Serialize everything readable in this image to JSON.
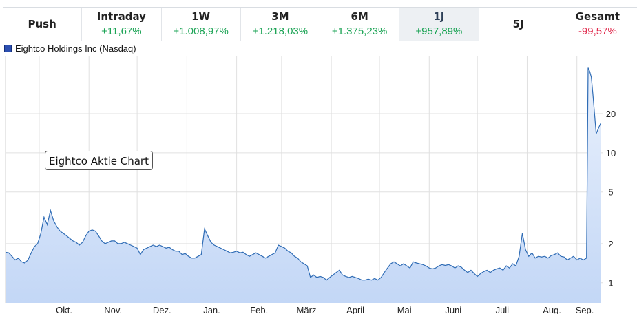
{
  "tabs": [
    {
      "label": "Push",
      "change": "",
      "selected": false
    },
    {
      "label": "Intraday",
      "change": "+11,67%",
      "selected": false
    },
    {
      "label": "1W",
      "change": "+1.008,97%",
      "selected": false
    },
    {
      "label": "3M",
      "change": "+1.218,03%",
      "selected": false
    },
    {
      "label": "6M",
      "change": "+1.375,23%",
      "selected": false
    },
    {
      "label": "1J",
      "change": "+957,89%",
      "selected": true
    },
    {
      "label": "5J",
      "change": "",
      "selected": false
    },
    {
      "label": "Gesamt",
      "change": "-99,57%",
      "selected": false
    }
  ],
  "colors": {
    "positive": "#1aa354",
    "negative": "#e0284b",
    "series_line": "#2f6cb5",
    "series_fill": "#c3d7f6",
    "legend_swatch": "#2b4eb0"
  },
  "chart_data": {
    "type": "area",
    "series_name": "Eightco Holdings Inc (Nasdaq)",
    "annotation": "Eightco Aktie Chart",
    "y_scale": "log",
    "y_ticks": [
      "1",
      "2",
      "5",
      "10",
      "20"
    ],
    "ylim": [
      0.7,
      55
    ],
    "x_ticks": [
      "Okt.",
      "Nov.",
      "Dez.",
      "Jan.",
      "Feb.",
      "März",
      "April",
      "Mai",
      "Juni",
      "Juli",
      "Aug.",
      "Sep."
    ],
    "xlim": [
      "2024-09-10",
      "2025-09-17"
    ],
    "grid": true,
    "y_axis_side": "right",
    "points": [
      [
        "2024-09-10",
        1.72
      ],
      [
        "2024-09-12",
        1.7
      ],
      [
        "2024-09-14",
        1.6
      ],
      [
        "2024-09-16",
        1.5
      ],
      [
        "2024-09-18",
        1.55
      ],
      [
        "2024-09-20",
        1.45
      ],
      [
        "2024-09-22",
        1.42
      ],
      [
        "2024-09-24",
        1.5
      ],
      [
        "2024-09-26",
        1.7
      ],
      [
        "2024-09-28",
        1.9
      ],
      [
        "2024-09-30",
        2.0
      ],
      [
        "2024-10-02",
        2.4
      ],
      [
        "2024-10-04",
        3.2
      ],
      [
        "2024-10-06",
        2.8
      ],
      [
        "2024-10-08",
        3.6
      ],
      [
        "2024-10-10",
        3.0
      ],
      [
        "2024-10-12",
        2.7
      ],
      [
        "2024-10-14",
        2.5
      ],
      [
        "2024-10-16",
        2.4
      ],
      [
        "2024-10-18",
        2.3
      ],
      [
        "2024-10-20",
        2.2
      ],
      [
        "2024-10-22",
        2.1
      ],
      [
        "2024-10-24",
        2.05
      ],
      [
        "2024-10-26",
        1.95
      ],
      [
        "2024-10-28",
        2.05
      ],
      [
        "2024-10-30",
        2.3
      ],
      [
        "2024-11-01",
        2.5
      ],
      [
        "2024-11-03",
        2.55
      ],
      [
        "2024-11-05",
        2.5
      ],
      [
        "2024-11-07",
        2.3
      ],
      [
        "2024-11-09",
        2.1
      ],
      [
        "2024-11-11",
        2.0
      ],
      [
        "2024-11-13",
        2.05
      ],
      [
        "2024-11-15",
        2.1
      ],
      [
        "2024-11-17",
        2.1
      ],
      [
        "2024-11-19",
        2.0
      ],
      [
        "2024-11-21",
        2.0
      ],
      [
        "2024-11-23",
        2.05
      ],
      [
        "2024-11-25",
        2.0
      ],
      [
        "2024-11-27",
        1.95
      ],
      [
        "2024-11-29",
        1.9
      ],
      [
        "2024-12-01",
        1.85
      ],
      [
        "2024-12-03",
        1.65
      ],
      [
        "2024-12-05",
        1.8
      ],
      [
        "2024-12-07",
        1.85
      ],
      [
        "2024-12-09",
        1.9
      ],
      [
        "2024-12-11",
        1.95
      ],
      [
        "2024-12-13",
        1.9
      ],
      [
        "2024-12-15",
        1.95
      ],
      [
        "2024-12-17",
        1.9
      ],
      [
        "2024-12-19",
        1.85
      ],
      [
        "2024-12-21",
        1.88
      ],
      [
        "2024-12-23",
        1.8
      ],
      [
        "2024-12-25",
        1.75
      ],
      [
        "2024-12-27",
        1.75
      ],
      [
        "2024-12-29",
        1.65
      ],
      [
        "2024-12-31",
        1.68
      ],
      [
        "2025-01-02",
        1.6
      ],
      [
        "2025-01-04",
        1.55
      ],
      [
        "2025-01-06",
        1.55
      ],
      [
        "2025-01-08",
        1.6
      ],
      [
        "2025-01-10",
        1.65
      ],
      [
        "2025-01-12",
        2.6
      ],
      [
        "2025-01-14",
        2.3
      ],
      [
        "2025-01-16",
        2.05
      ],
      [
        "2025-01-18",
        1.95
      ],
      [
        "2025-01-20",
        1.9
      ],
      [
        "2025-01-22",
        1.85
      ],
      [
        "2025-01-24",
        1.8
      ],
      [
        "2025-01-26",
        1.75
      ],
      [
        "2025-01-28",
        1.7
      ],
      [
        "2025-01-30",
        1.72
      ],
      [
        "2025-02-01",
        1.75
      ],
      [
        "2025-02-03",
        1.7
      ],
      [
        "2025-02-05",
        1.72
      ],
      [
        "2025-02-07",
        1.65
      ],
      [
        "2025-02-09",
        1.6
      ],
      [
        "2025-02-11",
        1.65
      ],
      [
        "2025-02-13",
        1.7
      ],
      [
        "2025-02-15",
        1.65
      ],
      [
        "2025-02-17",
        1.6
      ],
      [
        "2025-02-19",
        1.55
      ],
      [
        "2025-02-21",
        1.6
      ],
      [
        "2025-02-23",
        1.65
      ],
      [
        "2025-02-25",
        1.7
      ],
      [
        "2025-02-27",
        1.95
      ],
      [
        "2025-03-01",
        1.9
      ],
      [
        "2025-03-03",
        1.85
      ],
      [
        "2025-03-05",
        1.75
      ],
      [
        "2025-03-07",
        1.7
      ],
      [
        "2025-03-09",
        1.6
      ],
      [
        "2025-03-11",
        1.55
      ],
      [
        "2025-03-13",
        1.45
      ],
      [
        "2025-03-15",
        1.4
      ],
      [
        "2025-03-17",
        1.35
      ],
      [
        "2025-03-19",
        1.1
      ],
      [
        "2025-03-21",
        1.15
      ],
      [
        "2025-03-23",
        1.1
      ],
      [
        "2025-03-25",
        1.12
      ],
      [
        "2025-03-27",
        1.1
      ],
      [
        "2025-03-29",
        1.05
      ],
      [
        "2025-03-31",
        1.1
      ],
      [
        "2025-04-02",
        1.15
      ],
      [
        "2025-04-04",
        1.2
      ],
      [
        "2025-04-06",
        1.25
      ],
      [
        "2025-04-08",
        1.15
      ],
      [
        "2025-04-10",
        1.12
      ],
      [
        "2025-04-12",
        1.1
      ],
      [
        "2025-04-14",
        1.12
      ],
      [
        "2025-04-16",
        1.1
      ],
      [
        "2025-04-18",
        1.08
      ],
      [
        "2025-04-20",
        1.05
      ],
      [
        "2025-04-22",
        1.05
      ],
      [
        "2025-04-24",
        1.07
      ],
      [
        "2025-04-26",
        1.05
      ],
      [
        "2025-04-28",
        1.08
      ],
      [
        "2025-04-30",
        1.05
      ],
      [
        "2025-05-02",
        1.1
      ],
      [
        "2025-05-04",
        1.2
      ],
      [
        "2025-05-06",
        1.3
      ],
      [
        "2025-05-08",
        1.4
      ],
      [
        "2025-05-10",
        1.45
      ],
      [
        "2025-05-12",
        1.4
      ],
      [
        "2025-05-14",
        1.35
      ],
      [
        "2025-05-16",
        1.4
      ],
      [
        "2025-05-18",
        1.35
      ],
      [
        "2025-05-20",
        1.3
      ],
      [
        "2025-05-22",
        1.45
      ],
      [
        "2025-05-24",
        1.42
      ],
      [
        "2025-05-26",
        1.4
      ],
      [
        "2025-05-28",
        1.38
      ],
      [
        "2025-05-30",
        1.35
      ],
      [
        "2025-06-01",
        1.3
      ],
      [
        "2025-06-03",
        1.28
      ],
      [
        "2025-06-05",
        1.3
      ],
      [
        "2025-06-07",
        1.35
      ],
      [
        "2025-06-09",
        1.38
      ],
      [
        "2025-06-11",
        1.36
      ],
      [
        "2025-06-13",
        1.38
      ],
      [
        "2025-06-15",
        1.35
      ],
      [
        "2025-06-17",
        1.3
      ],
      [
        "2025-06-19",
        1.35
      ],
      [
        "2025-06-21",
        1.32
      ],
      [
        "2025-06-23",
        1.25
      ],
      [
        "2025-06-25",
        1.2
      ],
      [
        "2025-06-27",
        1.25
      ],
      [
        "2025-06-29",
        1.18
      ],
      [
        "2025-07-01",
        1.12
      ],
      [
        "2025-07-03",
        1.18
      ],
      [
        "2025-07-05",
        1.22
      ],
      [
        "2025-07-07",
        1.25
      ],
      [
        "2025-07-09",
        1.2
      ],
      [
        "2025-07-11",
        1.25
      ],
      [
        "2025-07-13",
        1.28
      ],
      [
        "2025-07-15",
        1.3
      ],
      [
        "2025-07-17",
        1.25
      ],
      [
        "2025-07-19",
        1.35
      ],
      [
        "2025-07-21",
        1.3
      ],
      [
        "2025-07-23",
        1.4
      ],
      [
        "2025-07-25",
        1.35
      ],
      [
        "2025-07-27",
        1.6
      ],
      [
        "2025-07-29",
        2.4
      ],
      [
        "2025-07-31",
        1.8
      ],
      [
        "2025-08-02",
        1.6
      ],
      [
        "2025-08-04",
        1.7
      ],
      [
        "2025-08-06",
        1.55
      ],
      [
        "2025-08-08",
        1.6
      ],
      [
        "2025-08-10",
        1.58
      ],
      [
        "2025-08-12",
        1.6
      ],
      [
        "2025-08-14",
        1.55
      ],
      [
        "2025-08-16",
        1.62
      ],
      [
        "2025-08-18",
        1.65
      ],
      [
        "2025-08-20",
        1.7
      ],
      [
        "2025-08-22",
        1.6
      ],
      [
        "2025-08-24",
        1.58
      ],
      [
        "2025-08-26",
        1.5
      ],
      [
        "2025-08-28",
        1.55
      ],
      [
        "2025-08-30",
        1.6
      ],
      [
        "2025-09-01",
        1.5
      ],
      [
        "2025-09-03",
        1.55
      ],
      [
        "2025-09-05",
        1.5
      ],
      [
        "2025-09-07",
        1.55
      ],
      [
        "2025-09-08",
        45.0
      ],
      [
        "2025-09-09",
        42.0
      ],
      [
        "2025-09-10",
        38.0
      ],
      [
        "2025-09-11",
        28.0
      ],
      [
        "2025-09-12",
        20.0
      ],
      [
        "2025-09-13",
        14.0
      ],
      [
        "2025-09-14",
        15.0
      ],
      [
        "2025-09-15",
        16.0
      ],
      [
        "2025-09-16",
        17.0
      ]
    ]
  }
}
